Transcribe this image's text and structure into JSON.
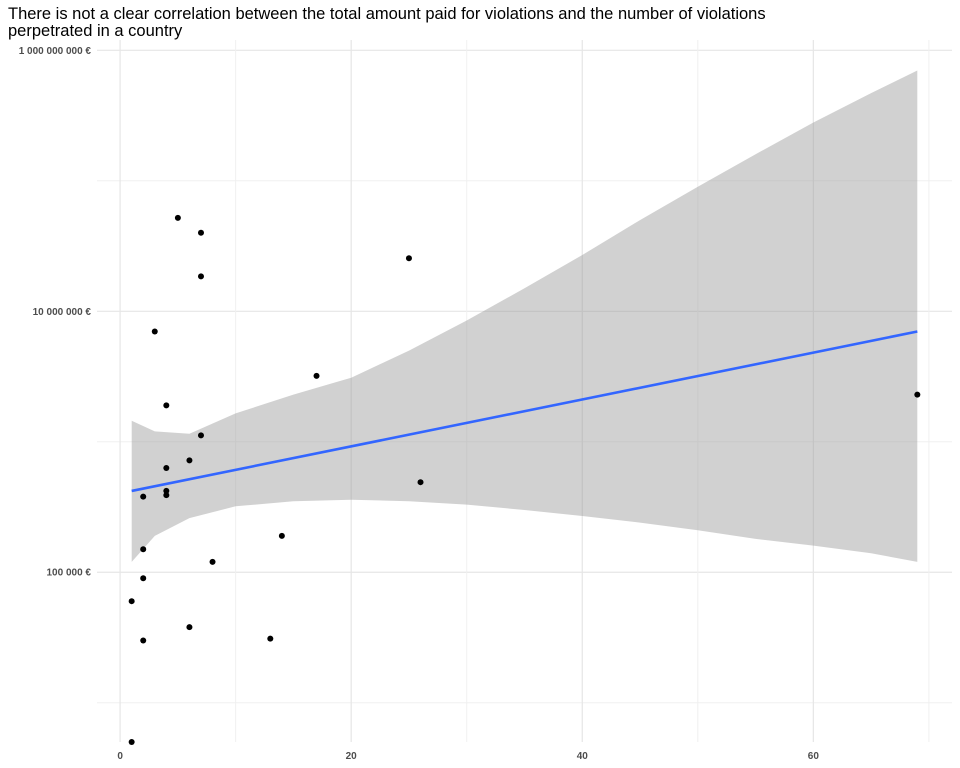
{
  "chart_data": {
    "type": "scatter",
    "title_lines": [
      "There is not a clear correlation between the total amount paid for violations and the number of violations",
      "perpetrated in a country"
    ],
    "xlabel": "",
    "ylabel": "",
    "x_scale": "linear",
    "y_scale": "log10",
    "xlim": [
      -2,
      72
    ],
    "ylim": [
      5000,
      1200000000
    ],
    "x_ticks": [
      0,
      20,
      40,
      60
    ],
    "x_tick_labels": [
      "0",
      "20",
      "40",
      "60"
    ],
    "y_ticks": [
      100000,
      10000000,
      1000000000
    ],
    "y_tick_labels": [
      "100 000 €",
      "10 000 000 €",
      "1 000 000 000 €"
    ],
    "y_minor_ticks": [
      10000,
      1000000,
      100000000
    ],
    "grid": true,
    "legend": "none",
    "points": [
      {
        "x": 1,
        "y": 5000
      },
      {
        "x": 1,
        "y": 60000
      },
      {
        "x": 2,
        "y": 30000
      },
      {
        "x": 2,
        "y": 90000
      },
      {
        "x": 2,
        "y": 150000
      },
      {
        "x": 2,
        "y": 380000
      },
      {
        "x": 3,
        "y": 7000000
      },
      {
        "x": 4,
        "y": 1900000
      },
      {
        "x": 4,
        "y": 630000
      },
      {
        "x": 4,
        "y": 420000
      },
      {
        "x": 4,
        "y": 390000
      },
      {
        "x": 5,
        "y": 52000000
      },
      {
        "x": 6,
        "y": 720000
      },
      {
        "x": 6,
        "y": 38000
      },
      {
        "x": 7,
        "y": 40000000
      },
      {
        "x": 7,
        "y": 18500000
      },
      {
        "x": 7,
        "y": 1120000
      },
      {
        "x": 8,
        "y": 120000
      },
      {
        "x": 13,
        "y": 31000
      },
      {
        "x": 14,
        "y": 190000
      },
      {
        "x": 17,
        "y": 3200000
      },
      {
        "x": 25,
        "y": 25500000
      },
      {
        "x": 26,
        "y": 490000
      },
      {
        "x": 69,
        "y": 2300000
      }
    ],
    "trend": {
      "type": "lm",
      "x": [
        1,
        69
      ],
      "y": [
        420000,
        7000000
      ],
      "ci": {
        "x": [
          1,
          3,
          6,
          10,
          15,
          20,
          25,
          30,
          35,
          40,
          45,
          50,
          55,
          60,
          65,
          69
        ],
        "lower": [
          120000,
          190000,
          260000,
          320000,
          350000,
          360000,
          350000,
          330000,
          300000,
          270000,
          240000,
          210000,
          180000,
          160000,
          140000,
          120000
        ],
        "upper": [
          1450000,
          1200000,
          1150000,
          1650000,
          2300000,
          3100000,
          5000000,
          8500000,
          15000000,
          27000000,
          50000000,
          90000000,
          160000000,
          280000000,
          470000000,
          700000000
        ]
      }
    },
    "colors": {
      "points": "#000000",
      "trend_line": "#3366FF",
      "ci_band": "#999999",
      "grid_major": "#e6e6e6",
      "grid_minor": "#f0f0f0"
    }
  }
}
